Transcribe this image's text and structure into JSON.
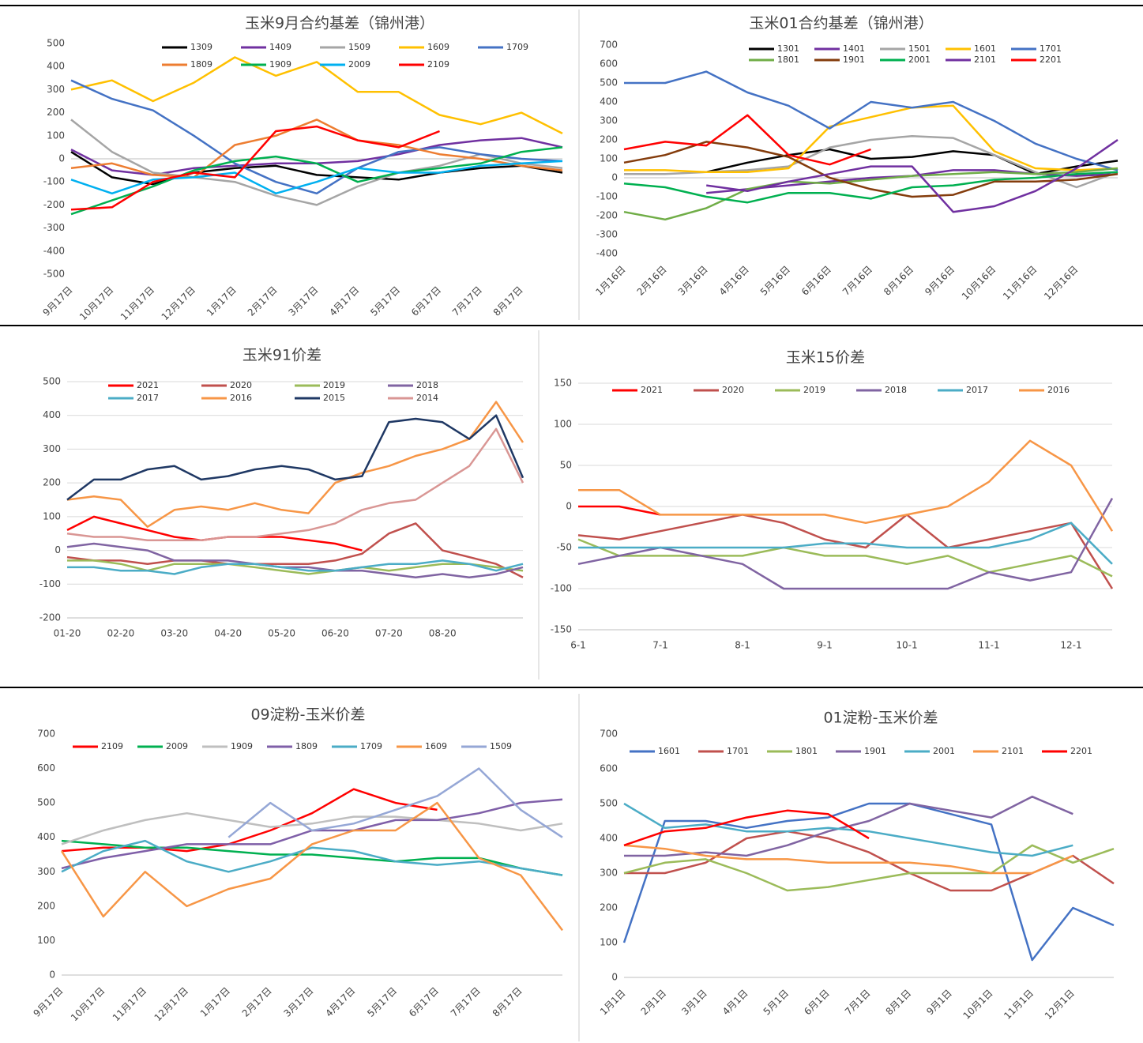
{
  "chart_data": [
    {
      "type": "line",
      "title": "玉米9月合约基差（锦州港）",
      "legend": "top",
      "grid": false,
      "categories": [
        "9月17日",
        "10月17日",
        "11月17日",
        "12月17日",
        "1月17日",
        "2月17日",
        "3月17日",
        "4月17日",
        "5月17日",
        "6月17日",
        "7月17日",
        "8月17日",
        null
      ],
      "ylim": [
        -500,
        500
      ],
      "yticks": [
        -500,
        -400,
        -300,
        -200,
        -100,
        0,
        100,
        200,
        300,
        400,
        500
      ],
      "series": [
        {
          "name": "1309",
          "color": "#000000",
          "values": [
            30,
            -80,
            -110,
            -60,
            -40,
            -30,
            -70,
            -80,
            -90,
            -60,
            -40,
            -30,
            -60
          ]
        },
        {
          "name": "1409",
          "color": "#7030a0",
          "values": [
            40,
            -50,
            -70,
            -40,
            -30,
            -20,
            -20,
            -10,
            20,
            60,
            80,
            90,
            50
          ]
        },
        {
          "name": "1509",
          "color": "#a5a5a5",
          "values": [
            170,
            30,
            -60,
            -80,
            -100,
            -160,
            -200,
            -120,
            -60,
            -30,
            20,
            -20,
            -40
          ]
        },
        {
          "name": "1609",
          "color": "#ffc000",
          "values": [
            300,
            340,
            250,
            330,
            440,
            360,
            420,
            290,
            290,
            190,
            150,
            200,
            110
          ]
        },
        {
          "name": "1709",
          "color": "#4472c4",
          "values": [
            340,
            260,
            210,
            100,
            -20,
            -100,
            -150,
            -40,
            30,
            50,
            20,
            0,
            -10
          ]
        },
        {
          "name": "1809",
          "color": "#ed7d31",
          "values": [
            -40,
            -20,
            -70,
            -80,
            60,
            100,
            170,
            80,
            60,
            20,
            0,
            -30,
            -50
          ]
        },
        {
          "name": "1909",
          "color": "#00b050",
          "values": [
            -240,
            -180,
            -120,
            -50,
            -10,
            10,
            -20,
            -100,
            -60,
            -40,
            -20,
            30,
            50
          ]
        },
        {
          "name": "2009",
          "color": "#00b0f0",
          "values": [
            -90,
            -150,
            -90,
            -80,
            -60,
            -150,
            -100,
            -40,
            -60,
            -60,
            -30,
            -20,
            -10
          ]
        },
        {
          "name": "2109",
          "color": "#ff0000",
          "values": [
            -220,
            -210,
            -100,
            -60,
            -80,
            120,
            140,
            80,
            50,
            120,
            null,
            null,
            null
          ]
        }
      ]
    },
    {
      "type": "line",
      "title": "玉米01合约基差（锦州港）",
      "legend": "top",
      "grid": false,
      "categories": [
        "1月16日",
        "2月16日",
        "3月16日",
        "4月16日",
        "5月16日",
        "6月16日",
        "7月16日",
        "8月16日",
        "9月16日",
        "10月16日",
        "11月16日",
        "12月16日",
        null
      ],
      "ylim": [
        -400,
        700
      ],
      "yticks": [
        -400,
        -300,
        -200,
        -100,
        0,
        100,
        200,
        300,
        400,
        500,
        600,
        700
      ],
      "series": [
        {
          "name": "1301",
          "color": "#000000",
          "values": [
            null,
            null,
            30,
            80,
            120,
            150,
            100,
            110,
            140,
            120,
            20,
            60,
            90
          ]
        },
        {
          "name": "1401",
          "color": "#7030a0",
          "values": [
            null,
            null,
            -80,
            -60,
            -40,
            -20,
            0,
            10,
            40,
            40,
            20,
            10,
            20
          ]
        },
        {
          "name": "1501",
          "color": "#a5a5a5",
          "values": [
            20,
            20,
            30,
            40,
            60,
            160,
            200,
            220,
            210,
            120,
            30,
            -50,
            30
          ]
        },
        {
          "name": "1601",
          "color": "#ffc000",
          "values": [
            40,
            40,
            30,
            30,
            50,
            270,
            320,
            370,
            380,
            140,
            50,
            40,
            50
          ]
        },
        {
          "name": "1701",
          "color": "#4472c4",
          "values": [
            500,
            500,
            560,
            450,
            380,
            260,
            400,
            370,
            400,
            300,
            180,
            100,
            40
          ]
        },
        {
          "name": "1801",
          "color": "#70ad47",
          "values": [
            -180,
            -220,
            -160,
            -60,
            -20,
            -30,
            -10,
            10,
            20,
            30,
            20,
            30,
            50
          ]
        },
        {
          "name": "1901",
          "color": "#843c0c",
          "values": [
            80,
            120,
            190,
            160,
            110,
            0,
            -60,
            -100,
            -90,
            -20,
            -20,
            -10,
            20
          ]
        },
        {
          "name": "2001",
          "color": "#00b050",
          "values": [
            -30,
            -50,
            -100,
            -130,
            -80,
            -80,
            -110,
            -50,
            -40,
            -10,
            0,
            20,
            30
          ]
        },
        {
          "name": "2101",
          "color": "#7030a0",
          "values": [
            null,
            null,
            -40,
            -70,
            -20,
            20,
            60,
            60,
            -180,
            -150,
            -70,
            50,
            200
          ]
        },
        {
          "name": "2201",
          "color": "#ff0000",
          "values": [
            150,
            190,
            170,
            330,
            120,
            70,
            150,
            null,
            null,
            null,
            null,
            null,
            null
          ]
        }
      ]
    },
    {
      "type": "line",
      "title": "玉米91价差",
      "legend": "top",
      "grid": true,
      "categories": [
        "01-20",
        null,
        "02-20",
        null,
        "03-20",
        null,
        "04-20",
        null,
        "05-20",
        null,
        "06-20",
        null,
        "07-20",
        null,
        "08-20",
        null,
        null,
        null
      ],
      "ylim": [
        -200,
        500
      ],
      "yticks": [
        -200,
        -100,
        0,
        100,
        200,
        300,
        400,
        500
      ],
      "series": [
        {
          "name": "2021",
          "color": "#ff0000",
          "values": [
            60,
            100,
            80,
            60,
            40,
            30,
            40,
            40,
            40,
            30,
            20,
            0,
            null,
            null,
            null,
            null,
            null,
            null
          ]
        },
        {
          "name": "2020",
          "color": "#c0504d",
          "values": [
            -20,
            -30,
            -30,
            -40,
            -30,
            -30,
            -40,
            -40,
            -40,
            -40,
            -30,
            -10,
            50,
            80,
            0,
            -20,
            -40,
            -80
          ]
        },
        {
          "name": "2019",
          "color": "#9bbb59",
          "values": [
            -30,
            -30,
            -40,
            -60,
            -40,
            -40,
            -40,
            -50,
            -60,
            -70,
            -60,
            -50,
            -60,
            -50,
            -40,
            -40,
            -50,
            -60
          ]
        },
        {
          "name": "2018",
          "color": "#8064a2",
          "values": [
            10,
            20,
            10,
            0,
            -30,
            -30,
            -30,
            -40,
            -50,
            -50,
            -60,
            -60,
            -70,
            -80,
            -70,
            -80,
            -70,
            -50
          ]
        },
        {
          "name": "2017",
          "color": "#4bacc6",
          "values": [
            -50,
            -50,
            -60,
            -60,
            -70,
            -50,
            -40,
            -40,
            -50,
            -60,
            -60,
            -50,
            -40,
            -40,
            -30,
            -40,
            -60,
            -40
          ]
        },
        {
          "name": "2016",
          "color": "#f79646",
          "values": [
            150,
            160,
            150,
            70,
            120,
            130,
            120,
            140,
            120,
            110,
            200,
            230,
            250,
            280,
            300,
            330,
            440,
            320
          ]
        },
        {
          "name": "2015",
          "color": "#1f3864",
          "values": [
            150,
            210,
            210,
            240,
            250,
            210,
            220,
            240,
            250,
            240,
            210,
            220,
            380,
            390,
            380,
            330,
            400,
            215
          ]
        },
        {
          "name": "2014",
          "color": "#d99694",
          "values": [
            50,
            40,
            40,
            30,
            30,
            30,
            40,
            40,
            50,
            60,
            80,
            120,
            140,
            150,
            200,
            250,
            360,
            200
          ]
        }
      ]
    },
    {
      "type": "line",
      "title": "玉米15价差",
      "legend": "top",
      "grid": true,
      "categories": [
        "6-1",
        null,
        "7-1",
        null,
        "8-1",
        null,
        "9-1",
        null,
        "10-1",
        null,
        "11-1",
        null,
        "12-1",
        null
      ],
      "ylim": [
        -150,
        150
      ],
      "yticks": [
        -150,
        -100,
        -50,
        0,
        50,
        100,
        150
      ],
      "series": [
        {
          "name": "2021",
          "color": "#ff0000",
          "values": [
            0,
            0,
            -10,
            null,
            null,
            null,
            null,
            null,
            null,
            null,
            null,
            null,
            null,
            null
          ]
        },
        {
          "name": "2020",
          "color": "#c0504d",
          "values": [
            -35,
            -40,
            -30,
            -20,
            -10,
            -20,
            -40,
            -50,
            -10,
            -50,
            -40,
            -30,
            -20,
            -100
          ]
        },
        {
          "name": "2019",
          "color": "#9bbb59",
          "values": [
            -40,
            -60,
            -60,
            -60,
            -60,
            -50,
            -60,
            -60,
            -70,
            -60,
            -80,
            -70,
            -60,
            -85
          ]
        },
        {
          "name": "2018",
          "color": "#8064a2",
          "values": [
            -70,
            -60,
            -50,
            -60,
            -70,
            -100,
            -100,
            -100,
            -100,
            -100,
            -80,
            -90,
            -80,
            10
          ]
        },
        {
          "name": "2017",
          "color": "#4bacc6",
          "values": [
            -50,
            -50,
            -50,
            -50,
            -50,
            -50,
            -45,
            -45,
            -50,
            -50,
            -50,
            -40,
            -20,
            -70
          ]
        },
        {
          "name": "2016",
          "color": "#f79646",
          "values": [
            20,
            20,
            -10,
            -10,
            -10,
            -10,
            -10,
            -20,
            -10,
            0,
            30,
            80,
            50,
            -30
          ]
        }
      ]
    },
    {
      "type": "line",
      "title": "09淀粉-玉米价差",
      "legend": "top",
      "grid": false,
      "categories": [
        "9月17日",
        "10月17日",
        "11月17日",
        "12月17日",
        "1月17日",
        "2月17日",
        "3月17日",
        "4月17日",
        "5月17日",
        "6月17日",
        "7月17日",
        "8月17日",
        null
      ],
      "ylim": [
        0,
        700
      ],
      "yticks": [
        0,
        100,
        200,
        300,
        400,
        500,
        600,
        700
      ],
      "series": [
        {
          "name": "2109",
          "color": "#ff0000",
          "values": [
            360,
            370,
            370,
            360,
            380,
            420,
            470,
            540,
            500,
            480,
            null,
            null,
            null
          ]
        },
        {
          "name": "2009",
          "color": "#00b050",
          "values": [
            390,
            380,
            370,
            370,
            360,
            350,
            350,
            340,
            330,
            340,
            340,
            310,
            290
          ]
        },
        {
          "name": "1909",
          "color": "#bfbfbf",
          "values": [
            380,
            420,
            450,
            470,
            450,
            430,
            440,
            460,
            460,
            450,
            440,
            420,
            440
          ]
        },
        {
          "name": "1809",
          "color": "#7f5fa8",
          "values": [
            310,
            340,
            360,
            380,
            380,
            380,
            420,
            420,
            450,
            450,
            470,
            500,
            510
          ]
        },
        {
          "name": "1709",
          "color": "#4bacc6",
          "values": [
            300,
            360,
            390,
            330,
            300,
            330,
            370,
            360,
            330,
            320,
            330,
            310,
            290
          ]
        },
        {
          "name": "1609",
          "color": "#f79646",
          "values": [
            360,
            170,
            300,
            200,
            250,
            280,
            380,
            420,
            420,
            500,
            340,
            290,
            130
          ]
        },
        {
          "name": "1509",
          "color": "#95a7d6",
          "values": [
            null,
            null,
            null,
            null,
            400,
            500,
            420,
            440,
            480,
            520,
            600,
            480,
            400
          ]
        }
      ]
    },
    {
      "type": "line",
      "title": "01淀粉-玉米价差",
      "legend": "top",
      "grid": false,
      "categories": [
        "1月1日",
        "2月1日",
        "3月1日",
        "4月1日",
        "5月1日",
        "6月1日",
        "7月1日",
        "8月1日",
        "9月1日",
        "10月1日",
        "11月1日",
        "12月1日",
        null
      ],
      "ylim": [
        0,
        700
      ],
      "yticks": [
        0,
        100,
        200,
        300,
        400,
        500,
        600,
        700
      ],
      "series": [
        {
          "name": "1601",
          "color": "#4472c4",
          "values": [
            100,
            450,
            450,
            430,
            450,
            460,
            500,
            500,
            470,
            440,
            50,
            200,
            150
          ]
        },
        {
          "name": "1701",
          "color": "#c0504d",
          "values": [
            300,
            300,
            330,
            400,
            420,
            400,
            360,
            300,
            250,
            250,
            300,
            350,
            270
          ]
        },
        {
          "name": "1801",
          "color": "#9bbb59",
          "values": [
            300,
            330,
            340,
            300,
            250,
            260,
            280,
            300,
            300,
            300,
            380,
            330,
            370
          ]
        },
        {
          "name": "1901",
          "color": "#8064a2",
          "values": [
            350,
            350,
            360,
            350,
            380,
            420,
            450,
            500,
            480,
            460,
            520,
            470,
            null
          ]
        },
        {
          "name": "2001",
          "color": "#4bacc6",
          "values": [
            500,
            430,
            440,
            420,
            420,
            430,
            420,
            400,
            380,
            360,
            350,
            380,
            null
          ]
        },
        {
          "name": "2101",
          "color": "#f79646",
          "values": [
            380,
            370,
            350,
            340,
            340,
            330,
            330,
            330,
            320,
            300,
            300,
            350,
            null
          ]
        },
        {
          "name": "2201",
          "color": "#ff0000",
          "values": [
            380,
            420,
            430,
            460,
            480,
            470,
            400,
            null,
            null,
            null,
            null,
            null,
            null
          ]
        }
      ]
    }
  ]
}
